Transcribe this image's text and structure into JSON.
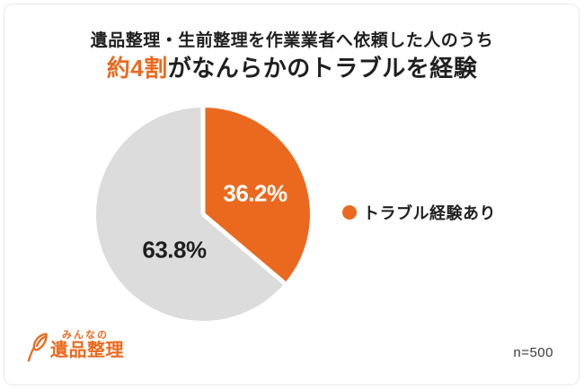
{
  "colors": {
    "accent_orange": "#EB691E",
    "pie_gray": "#DCDCDC",
    "text_dark": "#1F1F1F",
    "card_border": "#E9E9E9",
    "label_on_orange": "#FFFFFF"
  },
  "header": {
    "line1": "遺品整理・生前整理を作業業者へ依頼した人のうち",
    "line2_highlight": "約4割",
    "line2_rest": "がなんらかのトラブルを経験"
  },
  "chart_data": {
    "type": "pie",
    "title": "遺品整理・生前整理を作業業者へ依頼した人のうち 約4割がなんらかのトラブルを経験",
    "start_angle_deg": 0,
    "direction": "clockwise",
    "slices": [
      {
        "name": "トラブル経験あり",
        "value": 36.2,
        "value_label": "36.2%",
        "color": "#EB691E",
        "label_color": "#FFFFFF"
      },
      {
        "name": "",
        "value": 63.8,
        "value_label": "63.8%",
        "color": "#DCDCDC",
        "label_color": "#1F1F1F"
      }
    ],
    "legend": [
      {
        "label": "トラブル経験あり",
        "color": "#EB691E",
        "position": "right"
      }
    ],
    "separator_color": "#FFFFFF"
  },
  "footer": {
    "logo_top": "みんなの",
    "logo_bottom": "遺品整理",
    "sample_size": "n=500"
  }
}
